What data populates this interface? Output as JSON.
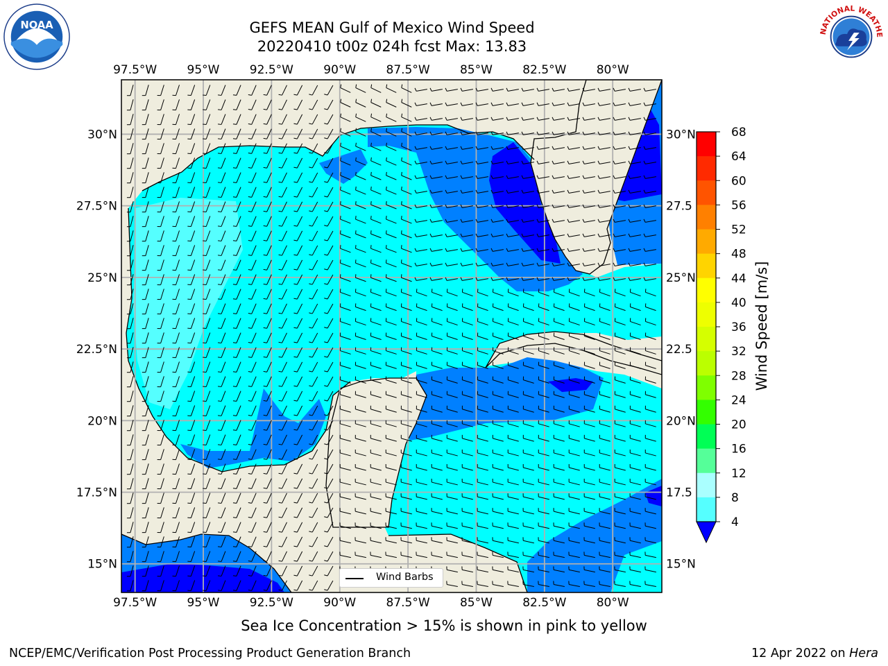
{
  "title": {
    "line1": "GEFS MEAN Gulf of Mexico Wind Speed",
    "line2": "20220410 t00z 024h fcst   Max: 13.83"
  },
  "logos": {
    "left": {
      "icon": "noaa-logo",
      "text": "NOAA"
    },
    "right": {
      "icon": "nws-logo",
      "text": "NATIONAL WEATHER SERVICE"
    }
  },
  "map": {
    "lon_labels": [
      "97.5°W",
      "95°W",
      "92.5°W",
      "90°W",
      "87.5°W",
      "85°W",
      "82.5°W",
      "80°W"
    ],
    "lon_values": [
      -97.5,
      -95,
      -92.5,
      -90,
      -87.5,
      -85,
      -82.5,
      -80
    ],
    "lat_labels_left": [
      "30°N",
      "27.5°N",
      "25°N",
      "22.5°N",
      "20°N",
      "17.5°N",
      "15°N"
    ],
    "lat_labels_right": [
      "30°N",
      "27.5",
      "25°N",
      "22.5",
      "20°N",
      "17.5",
      "15°N"
    ],
    "lat_values": [
      30,
      27.5,
      25,
      22.5,
      20,
      17.5,
      15
    ],
    "extent": {
      "lon_min": -98,
      "lon_max": -78.2,
      "lat_min": 14,
      "lat_max": 31.9
    },
    "land_color": "#efedde",
    "ocean_color": "#00ffff",
    "legend_label": "Wind Barbs"
  },
  "colorbar": {
    "label": "Wind Speed [m/s]",
    "ticks": [
      "68",
      "64",
      "60",
      "56",
      "52",
      "48",
      "44",
      "40",
      "36",
      "32",
      "28",
      "24",
      "20",
      "16",
      "12",
      "8",
      "4"
    ],
    "colors": [
      "#ff0000",
      "#ff2a00",
      "#ff5400",
      "#ff8000",
      "#ffaa00",
      "#ffd400",
      "#ffff00",
      "#eeff00",
      "#d5ff00",
      "#bbff00",
      "#7fff00",
      "#33ff00",
      "#00ff55",
      "#55ff99",
      "#aaffff",
      "#55ffff",
      "#00ffff",
      "#0080ff"
    ],
    "under_color": "#0000ff"
  },
  "caption": "Sea Ice Concentration > 15% is shown in pink to yellow",
  "footer": {
    "left": "NCEP/EMC/Verification Post Processing Product Generation Branch",
    "right_date": "12 Apr 2022 on ",
    "right_host": "Hera"
  }
}
